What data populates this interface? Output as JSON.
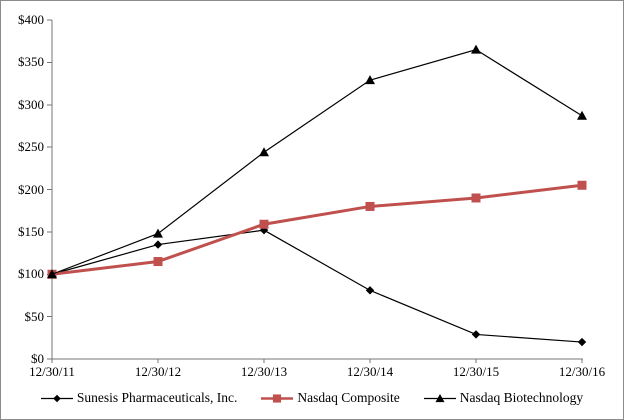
{
  "chart_data": {
    "type": "line",
    "title": "",
    "xlabel": "",
    "ylabel": "",
    "categories": [
      "12/30/11",
      "12/30/12",
      "12/30/13",
      "12/30/14",
      "12/30/15",
      "12/30/16"
    ],
    "series": [
      {
        "name": "Sunesis Pharmaceuticals, Inc.",
        "marker": "diamond",
        "color": "#000000",
        "line_width": 1.2,
        "values": [
          100,
          135,
          152,
          81,
          29,
          20
        ]
      },
      {
        "name": "Nasdaq Composite",
        "marker": "square",
        "color": "#C0504D",
        "line_width": 3,
        "values": [
          100,
          115,
          159,
          180,
          190,
          205
        ]
      },
      {
        "name": "Nasdaq Biotechnology",
        "marker": "triangle",
        "color": "#000000",
        "line_width": 1.2,
        "values": [
          100,
          148,
          244,
          329,
          365,
          287
        ]
      }
    ],
    "ylim": [
      0,
      400
    ],
    "ytick_values": [
      0,
      50,
      100,
      150,
      200,
      250,
      300,
      350,
      400
    ],
    "ytick_labels": [
      "$0",
      "$50",
      "$100",
      "$150",
      "$200",
      "$250",
      "$300",
      "$350",
      "$400"
    ],
    "grid": false,
    "legend_position": "bottom",
    "axis_color": "#757575",
    "background_color": "#FFFFFF",
    "border_color": "#8C8C8C"
  }
}
